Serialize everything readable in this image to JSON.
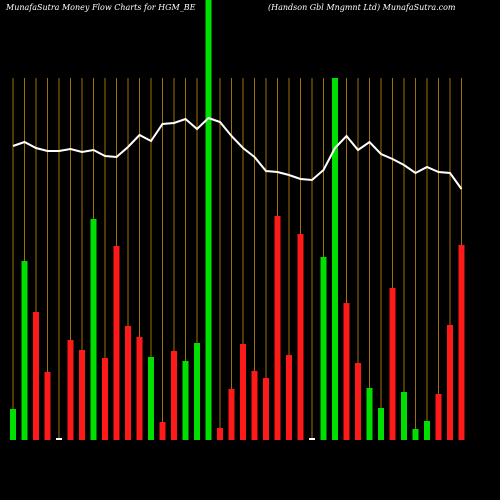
{
  "chart_data": {
    "type": "bar",
    "title": "MunafaSutra  Money Flow  Charts for HGM_BE",
    "subtitle": "(Handson  Gbl Mngmnt Ltd) MunafaSutra.com",
    "values": [
      31,
      179,
      128,
      68,
      2,
      100,
      90,
      221,
      82,
      194,
      114,
      103,
      83,
      18,
      89,
      79,
      97,
      440,
      12,
      51,
      96,
      69,
      62,
      224,
      85,
      206,
      2,
      183,
      362,
      137,
      77,
      52,
      32,
      152,
      48,
      11,
      19,
      46,
      115,
      195
    ],
    "colors": [
      "#00e000",
      "#00e000",
      "#ff1a1a",
      "#ff1a1a",
      "#ffffff",
      "#ff1a1a",
      "#ff1a1a",
      "#00e000",
      "#ff1a1a",
      "#ff1a1a",
      "#ff1a1a",
      "#ff1a1a",
      "#00e000",
      "#ff1a1a",
      "#ff1a1a",
      "#00e000",
      "#00e000",
      "#00e000",
      "#ff1a1a",
      "#ff1a1a",
      "#ff1a1a",
      "#ff1a1a",
      "#ff1a1a",
      "#ff1a1a",
      "#ff1a1a",
      "#ff1a1a",
      "#ffffff",
      "#00e000",
      "#00e000",
      "#ff1a1a",
      "#ff1a1a",
      "#00e000",
      "#00e000",
      "#ff1a1a",
      "#00e000",
      "#00e000",
      "#00e000",
      "#ff1a1a",
      "#ff1a1a",
      "#ff1a1a"
    ],
    "line": {
      "color": "#ffffff",
      "values": [
        294,
        298,
        292,
        289,
        289,
        291,
        288,
        290,
        284,
        283,
        293,
        305,
        299,
        316,
        317,
        321,
        311,
        322,
        318,
        304,
        292,
        283,
        269,
        268,
        265,
        261,
        260,
        270,
        292,
        304,
        290,
        298,
        286,
        281,
        275,
        267,
        273,
        268,
        267,
        251
      ]
    },
    "ylim": [
      0,
      440
    ],
    "grid": true,
    "grid_color": "#a0700a"
  }
}
